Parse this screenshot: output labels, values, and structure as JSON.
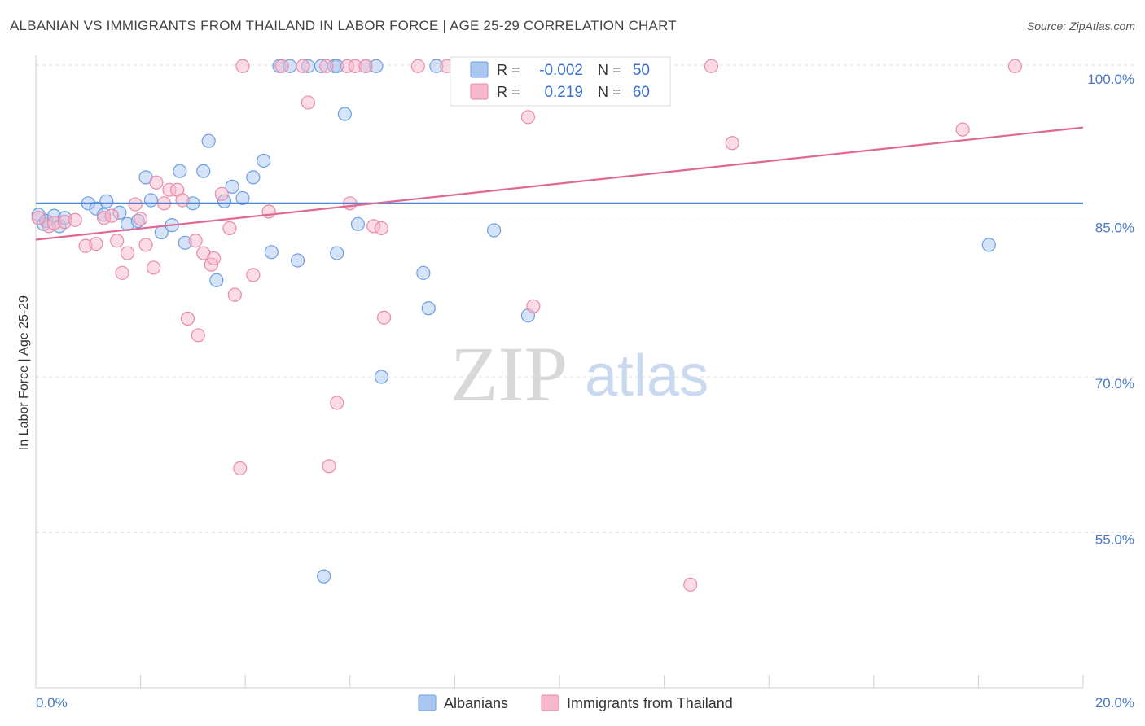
{
  "title": "ALBANIAN VS IMMIGRANTS FROM THAILAND IN LABOR FORCE | AGE 25-29 CORRELATION CHART",
  "source": "Source: ZipAtlas.com",
  "watermark": {
    "zip": "ZIP",
    "atlas": "atlas"
  },
  "colors": {
    "albanians_fill": "#a9c8f0",
    "albanians_stroke": "#6f9ee0",
    "albanians_line": "#3a78d8",
    "thailand_fill": "#f7b8cc",
    "thailand_stroke": "#ea8aaa",
    "thailand_line": "#e06694",
    "grid": "#e2e2e2",
    "tick_text": "#4a78c4"
  },
  "legend": {
    "r_label": "R =",
    "n_label": "N =",
    "albanians": {
      "r": "-0.002",
      "n": "50"
    },
    "thailand": {
      "r": "0.219",
      "n": "60"
    }
  },
  "chart_data": {
    "type": "scatter",
    "title": "ALBANIAN VS IMMIGRANTS FROM THAILAND IN LABOR FORCE | AGE 25-29 CORRELATION CHART",
    "ylabel": "In Labor Force | Age 25-29",
    "xlim": [
      0,
      20
    ],
    "ylim": [
      40,
      101.5
    ],
    "x_tick_labels": [
      "0.0%",
      "20.0%"
    ],
    "y_ticks": [
      55,
      70,
      85,
      100
    ],
    "y_tick_labels": [
      "55.0%",
      "70.0%",
      "85.0%",
      "100.0%"
    ],
    "grid": true,
    "legend_position": "top-center",
    "series": [
      {
        "name": "Albanians",
        "trend": {
          "x": [
            0,
            20
          ],
          "y": [
            86.7,
            86.7
          ]
        },
        "points": [
          [
            0.05,
            85.6
          ],
          [
            0.15,
            84.7
          ],
          [
            0.2,
            85.0
          ],
          [
            0.35,
            85.5
          ],
          [
            0.45,
            84.5
          ],
          [
            0.55,
            85.3
          ],
          [
            1.0,
            86.7
          ],
          [
            1.15,
            86.2
          ],
          [
            1.3,
            85.6
          ],
          [
            1.35,
            86.9
          ],
          [
            1.6,
            85.8
          ],
          [
            1.75,
            84.7
          ],
          [
            1.95,
            85.0
          ],
          [
            2.1,
            89.2
          ],
          [
            2.2,
            87.0
          ],
          [
            2.4,
            83.9
          ],
          [
            2.6,
            84.6
          ],
          [
            2.75,
            89.8
          ],
          [
            2.85,
            82.9
          ],
          [
            3.0,
            86.7
          ],
          [
            3.2,
            89.8
          ],
          [
            3.3,
            92.7
          ],
          [
            3.45,
            79.3
          ],
          [
            3.6,
            86.9
          ],
          [
            3.75,
            88.3
          ],
          [
            3.95,
            87.2
          ],
          [
            4.15,
            89.2
          ],
          [
            4.35,
            90.8
          ],
          [
            4.5,
            82.0
          ],
          [
            4.65,
            99.9
          ],
          [
            4.85,
            99.9
          ],
          [
            5.0,
            81.2
          ],
          [
            5.2,
            99.9
          ],
          [
            5.45,
            99.9
          ],
          [
            5.5,
            50.8
          ],
          [
            5.7,
            99.9
          ],
          [
            5.75,
            81.9
          ],
          [
            5.9,
            95.3
          ],
          [
            6.15,
            84.7
          ],
          [
            6.3,
            99.9
          ],
          [
            6.5,
            99.9
          ],
          [
            6.6,
            70.0
          ],
          [
            7.4,
            80.0
          ],
          [
            7.5,
            76.6
          ],
          [
            7.65,
            99.9
          ],
          [
            8.1,
            99.9
          ],
          [
            8.75,
            84.1
          ],
          [
            9.4,
            75.9
          ],
          [
            18.2,
            82.7
          ],
          [
            5.75,
            99.9
          ]
        ]
      },
      {
        "name": "Immigrants from Thailand",
        "trend": {
          "x": [
            0,
            20
          ],
          "y": [
            83.2,
            94.0
          ]
        },
        "points": [
          [
            0.05,
            85.3
          ],
          [
            0.25,
            84.5
          ],
          [
            0.35,
            84.8
          ],
          [
            0.55,
            84.9
          ],
          [
            0.75,
            85.1
          ],
          [
            0.95,
            82.6
          ],
          [
            1.15,
            82.8
          ],
          [
            1.3,
            85.3
          ],
          [
            1.45,
            85.5
          ],
          [
            1.55,
            83.1
          ],
          [
            1.65,
            80.0
          ],
          [
            1.75,
            81.9
          ],
          [
            1.9,
            86.6
          ],
          [
            2.0,
            85.2
          ],
          [
            2.1,
            82.7
          ],
          [
            2.25,
            80.5
          ],
          [
            2.3,
            88.7
          ],
          [
            2.45,
            86.7
          ],
          [
            2.55,
            88.0
          ],
          [
            2.7,
            88.0
          ],
          [
            2.8,
            87.0
          ],
          [
            2.9,
            75.6
          ],
          [
            3.05,
            83.1
          ],
          [
            3.1,
            74.0
          ],
          [
            3.2,
            81.9
          ],
          [
            3.35,
            80.8
          ],
          [
            3.4,
            81.4
          ],
          [
            3.55,
            87.6
          ],
          [
            3.7,
            84.3
          ],
          [
            3.8,
            77.9
          ],
          [
            3.9,
            61.2
          ],
          [
            3.95,
            99.9
          ],
          [
            4.15,
            79.8
          ],
          [
            4.45,
            85.9
          ],
          [
            4.7,
            99.9
          ],
          [
            5.1,
            99.9
          ],
          [
            5.2,
            96.4
          ],
          [
            5.55,
            99.9
          ],
          [
            5.6,
            61.4
          ],
          [
            5.75,
            67.5
          ],
          [
            5.95,
            99.9
          ],
          [
            6.0,
            86.7
          ],
          [
            6.1,
            99.9
          ],
          [
            6.3,
            99.9
          ],
          [
            6.45,
            84.5
          ],
          [
            6.6,
            84.3
          ],
          [
            6.65,
            75.7
          ],
          [
            7.3,
            99.9
          ],
          [
            7.85,
            99.9
          ],
          [
            8.85,
            99.9
          ],
          [
            9.4,
            95.0
          ],
          [
            9.5,
            76.8
          ],
          [
            9.7,
            99.9
          ],
          [
            11.2,
            99.9
          ],
          [
            12.5,
            50.0
          ],
          [
            12.9,
            99.9
          ],
          [
            13.3,
            92.5
          ],
          [
            17.7,
            93.8
          ],
          [
            18.7,
            99.9
          ],
          [
            10.35,
            99.9
          ]
        ]
      }
    ]
  },
  "bottom_legend": [
    {
      "label": "Albanians"
    },
    {
      "label": "Immigrants from Thailand"
    }
  ]
}
